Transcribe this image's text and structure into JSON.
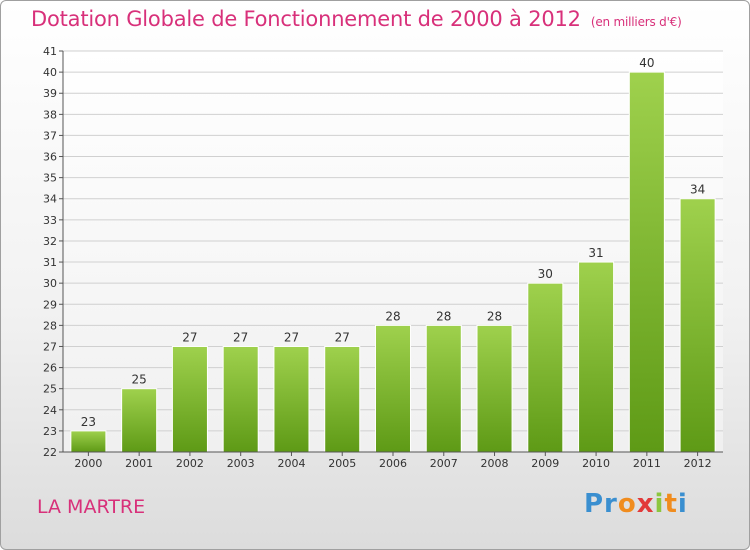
{
  "header": {
    "title": "Dotation Globale de Fonctionnement de 2000 à 2012",
    "subtitle": "(en milliers d'€)"
  },
  "footer": {
    "commune": "LA MARTRE",
    "logo_text": "Proxiti"
  },
  "colors": {
    "title": "#d8307a",
    "bar_top": "#9fd14d",
    "bar_bottom": "#5e9a16",
    "grid": "#d0d0d0"
  },
  "chart_data": {
    "type": "bar",
    "categories": [
      "2000",
      "2001",
      "2002",
      "2003",
      "2004",
      "2005",
      "2006",
      "2007",
      "2008",
      "2009",
      "2010",
      "2011",
      "2012"
    ],
    "values": [
      23,
      25,
      27,
      27,
      27,
      27,
      28,
      28,
      28,
      30,
      31,
      40,
      34
    ],
    "title": "Dotation Globale de Fonctionnement de 2000 à 2012",
    "subtitle": "(en milliers d'€)",
    "xlabel": "",
    "ylabel": "",
    "ylim": [
      22,
      41
    ],
    "ytick_step": 1,
    "grid": true,
    "data_labels": true
  }
}
